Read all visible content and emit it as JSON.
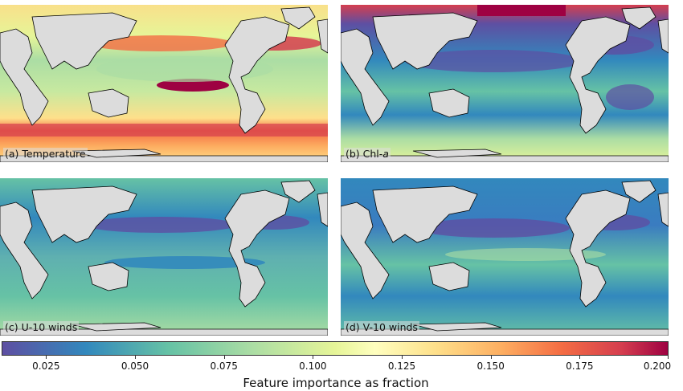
{
  "panels": [
    {
      "id": "a",
      "label_prefix": "(a) ",
      "label_main": "Temperature",
      "label_italic": ""
    },
    {
      "id": "b",
      "label_prefix": "(b) Chl-",
      "label_main": "",
      "label_italic": "a"
    },
    {
      "id": "c",
      "label_prefix": "(c) ",
      "label_main": "U-10 winds",
      "label_italic": ""
    },
    {
      "id": "d",
      "label_prefix": "(d) ",
      "label_main": "V-10 winds",
      "label_italic": ""
    }
  ],
  "colorbar": {
    "title": "Feature importance as fraction",
    "min": 0.0125,
    "max": 0.2,
    "ticks": [
      "0.025",
      "0.050",
      "0.075",
      "0.100",
      "0.125",
      "0.150",
      "0.175",
      "0.200"
    ],
    "colormap": "Spectral_r",
    "colors": [
      "#5e4fa2",
      "#3288bd",
      "#66c2a5",
      "#abdda4",
      "#e6f598",
      "#ffffbf",
      "#fee08b",
      "#fdae61",
      "#f46d43",
      "#d53e4f",
      "#9e0142"
    ]
  },
  "land_color": "#dcdcdc",
  "coast_color": "#000000"
}
